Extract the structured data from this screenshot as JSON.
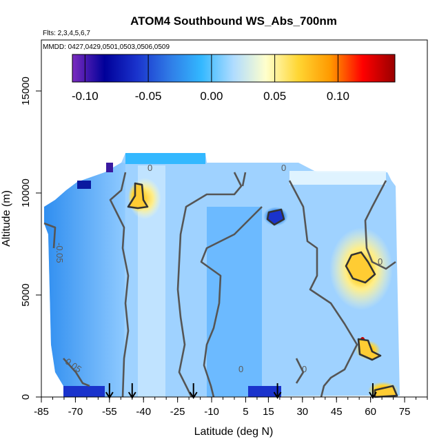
{
  "chart_data": {
    "type": "heatmap",
    "title": "ATOM4 Southbound WS_Abs_700nm",
    "flights_label": "Flts: 2,3,4,5,6,7",
    "dates_label": "MMDD: 0427,0429,0501,0503,0506,0509",
    "xlabel": "Latitude (deg N)",
    "ylabel": "Altitude (m)",
    "xlim": [
      -85,
      85
    ],
    "ylim": [
      0,
      17500
    ],
    "x_ticks": [
      -85,
      -70,
      -55,
      -40,
      -25,
      -10,
      5,
      15,
      30,
      45,
      60,
      75
    ],
    "y_ticks": [
      0,
      5000,
      10000,
      15000
    ],
    "colorbar": {
      "range": [
        -0.11,
        0.145
      ],
      "ticks": [
        -0.1,
        -0.05,
        0.0,
        0.05,
        0.1
      ],
      "tick_labels": [
        "-0.10",
        "-0.05",
        "0.00",
        "0.05",
        "0.10"
      ],
      "colors": [
        "#7b2cbf",
        "#000099",
        "#1a33cc",
        "#2f7ae6",
        "#33b8ff",
        "#b0dcff",
        "#ffffcc",
        "#ffd633",
        "#ff9900",
        "#ff0000",
        "#990000"
      ]
    },
    "contour_labels": [
      "0",
      "0",
      "0",
      "0",
      "0",
      "-0.05",
      "-0.05"
    ],
    "marker_latitudes": [
      -55,
      -45,
      -18,
      19,
      61
    ],
    "features": [
      {
        "lat": -42,
        "alt": 10000,
        "value": 0.07
      },
      {
        "lat": 20,
        "alt": 9300,
        "value": -0.09
      },
      {
        "lat": 58,
        "alt": 6500,
        "value": 0.06
      },
      {
        "lat": 58,
        "alt": 2400,
        "value": 0.07
      },
      {
        "lat": 65,
        "alt": 300,
        "value": 0.05
      },
      {
        "lat": -65,
        "alt": 5000,
        "value": -0.03
      }
    ]
  }
}
